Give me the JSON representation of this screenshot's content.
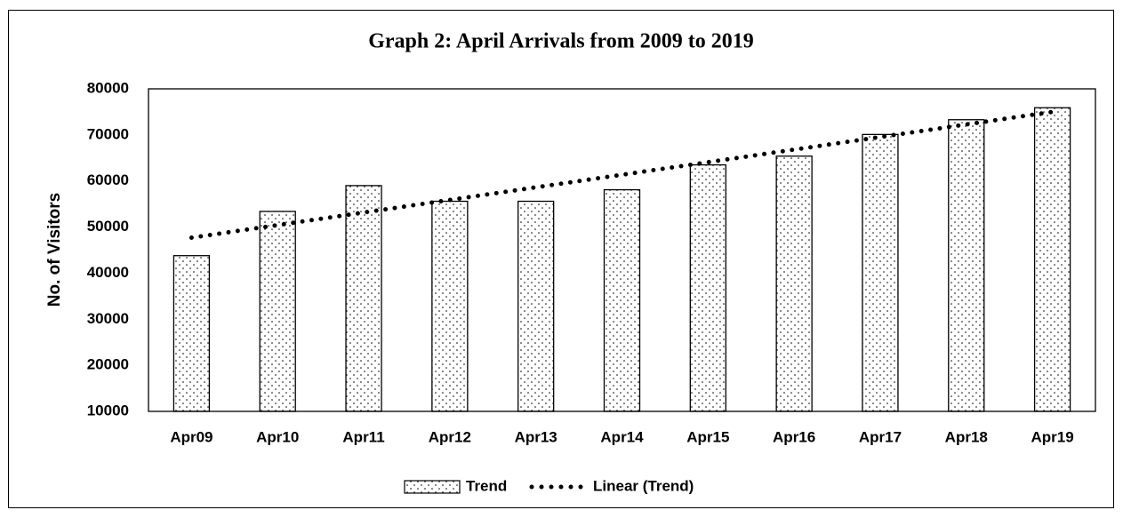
{
  "chart_data": {
    "type": "bar",
    "title": "Graph 2: April Arrivals from 2009 to 2019",
    "y_label": "No. of Visitors",
    "categories": [
      "Apr09",
      "Apr10",
      "Apr11",
      "Apr12",
      "Apr13",
      "Apr14",
      "Apr15",
      "Apr16",
      "Apr17",
      "Apr18",
      "Apr19"
    ],
    "series": [
      {
        "name": "Trend",
        "type": "bar",
        "color": "#000000",
        "values": [
          43800,
          53400,
          59000,
          55600,
          55600,
          58100,
          63500,
          65400,
          70100,
          73300,
          75900
        ]
      },
      {
        "name": "Linear (Trend)",
        "type": "line",
        "color": "#000000",
        "values": [
          47700,
          50430,
          53160,
          55890,
          58620,
          61350,
          64080,
          66810,
          69540,
          72270,
          75000
        ]
      }
    ],
    "ylim": [
      10000,
      80000
    ],
    "yticks": [
      10000,
      20000,
      30000,
      40000,
      50000,
      60000,
      70000,
      80000
    ],
    "legend": "bottom"
  }
}
